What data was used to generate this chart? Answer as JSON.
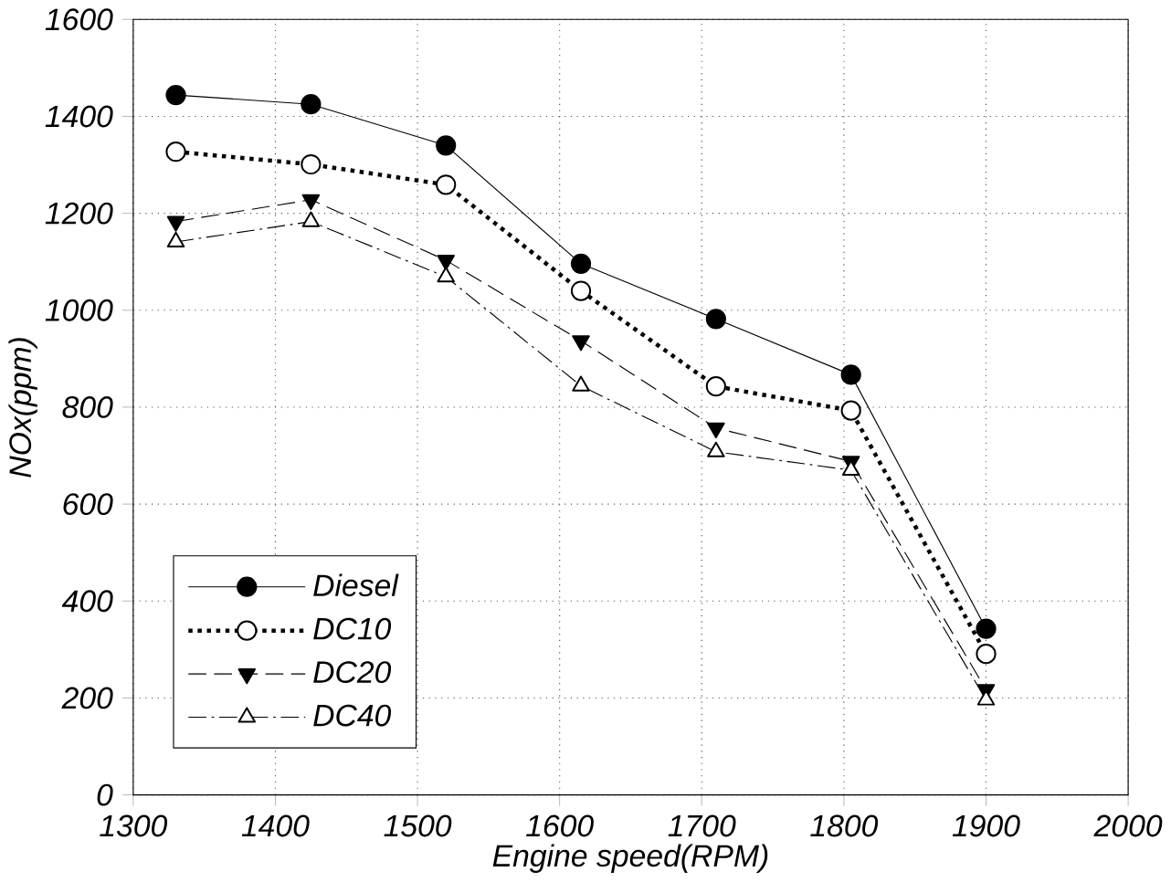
{
  "chart_data": {
    "type": "line",
    "xlabel": "Engine speed(RPM)",
    "ylabel": "NOx(ppm)",
    "x": [
      1330,
      1425,
      1520,
      1615,
      1710,
      1805,
      1900
    ],
    "series": [
      {
        "name": "Diesel",
        "color": "#000000",
        "marker": "circle",
        "line_style": "solid",
        "values": [
          1444,
          1425,
          1340,
          1096,
          982,
          867,
          343
        ]
      },
      {
        "name": "DC10",
        "color": "#000000",
        "marker": "circle",
        "line_style": "dotted",
        "values": [
          1327,
          1301,
          1259,
          1040,
          843,
          793,
          291
        ]
      },
      {
        "name": "DC20",
        "color": "#000000",
        "marker": "triangle",
        "line_style": "dashed",
        "values": [
          1183,
          1228,
          1103,
          937,
          757,
          688,
          217
        ]
      },
      {
        "name": "DC40",
        "color": "#000000",
        "marker": "triangle",
        "line_style": "dashdotted",
        "values": [
          1141,
          1183,
          1069,
          844,
          708,
          670,
          196
        ]
      }
    ],
    "xlim": [
      1300,
      2000
    ],
    "xticks": [
      1300,
      1400,
      1500,
      1600,
      1700,
      1800,
      1900,
      2000
    ],
    "ylim": [
      0,
      1600
    ],
    "yticks": [
      0,
      200,
      400,
      600,
      800,
      1000,
      1200,
      1400,
      1600
    ],
    "grid": true,
    "legend": "bottom left"
  }
}
